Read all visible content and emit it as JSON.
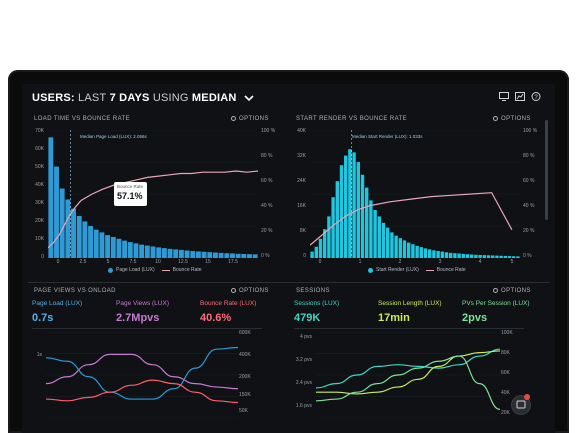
{
  "header": {
    "title_bold_1": "USERS:",
    "title_light_1": "LAST",
    "title_bold_2": "7 DAYS",
    "title_light_2": "USING",
    "title_bold_3": "MEDIAN",
    "icons": [
      "monitor-icon",
      "chart-line-icon",
      "help-icon"
    ]
  },
  "colors": {
    "blue_bars": "#2f9bd6",
    "cyan_bars": "#1fc6e0",
    "pink_line": "#e7a7b6",
    "bounce_red": "#ff5d6c",
    "purple": "#c47bd0",
    "teal": "#3fd6c6",
    "lime": "#c8ef5c",
    "green": "#7fe19a"
  },
  "panels": {
    "load_vs_bounce": {
      "title": "LOAD TIME VS BOUNCE RATE",
      "options": "OPTIONS",
      "median_label": "Median Page Load (LUX): 2.056s",
      "tooltip_title": "Bounce Rate",
      "tooltip_value": "57.1%",
      "y_left": [
        "70K",
        "60K",
        "50K",
        "40K",
        "30K",
        "20K",
        "10K",
        "0"
      ],
      "y_right": [
        "100 %",
        "80 %",
        "60 %",
        "40 %",
        "20 %",
        "0 %"
      ],
      "x": [
        "0",
        "2.5",
        "5",
        "7.5",
        "10",
        "12.5",
        "15",
        "17.5"
      ],
      "legend": [
        "Page Load (LUX)",
        "Bounce Rate"
      ]
    },
    "render_vs_bounce": {
      "title": "START RENDER VS BOUNCE RATE",
      "options": "OPTIONS",
      "median_label": "Median Start Render (LUX): 1.033s",
      "y_left": [
        "40K",
        "32K",
        "24K",
        "16K",
        "8K",
        "0"
      ],
      "y_right": [
        "100 %",
        "80 %",
        "60 %",
        "40 %",
        "20 %",
        "0 %"
      ],
      "x": [
        "0",
        "1",
        "2",
        "3",
        "4",
        "5"
      ],
      "legend": [
        "Start Render (LUX)",
        "Bounce Rate"
      ]
    },
    "pageviews": {
      "title": "PAGE VIEWS VS ONLOAD",
      "options": "OPTIONS",
      "metrics": [
        {
          "name": "Page Load (LUX)",
          "value": "0.7s"
        },
        {
          "name": "Page Views (LUX)",
          "value": "2.7Mpvs"
        },
        {
          "name": "Bounce Rate (LUX)",
          "value": "40.6%"
        }
      ],
      "y_left": [
        "1s",
        "",
        "",
        ""
      ],
      "y_right": [
        "600K",
        "400K",
        "200K",
        "150K",
        "50K"
      ]
    },
    "sessions": {
      "title": "SESSIONS",
      "options": "OPTIONS",
      "metrics": [
        {
          "name": "Sessions (LUX)",
          "value": "479K"
        },
        {
          "name": "Session Length (LUX)",
          "value": "17min"
        },
        {
          "name": "PVs Per Session (LUX)",
          "value": "2pvs"
        }
      ],
      "y_left": [
        "4 pvs",
        "3.2 pvs",
        "2.4 pvs",
        "1.6 pvs"
      ],
      "y_right": [
        "100K",
        "80K",
        "60K",
        "40K",
        "20K"
      ]
    }
  },
  "chart_data": [
    {
      "type": "bar",
      "title": "LOAD TIME VS BOUNCE RATE",
      "x": [
        0.25,
        0.75,
        1.25,
        1.75,
        2.25,
        2.75,
        3.25,
        3.75,
        4.25,
        4.75,
        5.25,
        5.75,
        6.25,
        6.75,
        7.25,
        7.75,
        8.25,
        8.75,
        9.25,
        9.75,
        10.25,
        10.75,
        11.25,
        11.75,
        12.25,
        12.75,
        13.25,
        13.75,
        14.25,
        14.75,
        15.25,
        15.75,
        16.25,
        16.75,
        17.25,
        17.75,
        18.25
      ],
      "values": [
        66000,
        50000,
        38000,
        32000,
        27000,
        23000,
        20000,
        17500,
        15500,
        14000,
        12500,
        11500,
        10500,
        9500,
        8700,
        8000,
        7300,
        6800,
        6300,
        5800,
        5400,
        5000,
        4700,
        4400,
        4100,
        3800,
        3600,
        3400,
        3200,
        3000,
        2800,
        2600,
        2500,
        2300,
        2200,
        2100,
        2000
      ],
      "bounce_x": [
        0,
        0.5,
        1,
        1.5,
        2,
        2.5,
        3,
        4,
        5,
        6,
        7,
        8,
        9,
        10,
        11,
        12,
        13,
        14,
        15,
        16,
        17,
        18,
        19
      ],
      "bounce_y": [
        8,
        12,
        18,
        26,
        34,
        40,
        45,
        50,
        54,
        57,
        59,
        61,
        63,
        64,
        65,
        66,
        66,
        67,
        67,
        67,
        68,
        67,
        68
      ],
      "ylim": [
        0,
        70000
      ],
      "ylim_right": [
        0,
        100
      ]
    },
    {
      "type": "bar",
      "title": "START RENDER VS BOUNCE RATE",
      "x": [
        0.05,
        0.15,
        0.25,
        0.35,
        0.45,
        0.55,
        0.65,
        0.75,
        0.85,
        0.95,
        1.05,
        1.15,
        1.25,
        1.35,
        1.45,
        1.55,
        1.65,
        1.75,
        1.85,
        1.95,
        2.05,
        2.15,
        2.25,
        2.35,
        2.45,
        2.55,
        2.65,
        2.75,
        2.85,
        2.95,
        3.05,
        3.15,
        3.25,
        3.35,
        3.45,
        3.55,
        3.65,
        3.75,
        3.85,
        3.95,
        4.05,
        4.15,
        4.25,
        4.35,
        4.45,
        4.55,
        4.65,
        4.75,
        4.85,
        4.95
      ],
      "values": [
        2000,
        3500,
        6000,
        9000,
        13000,
        19000,
        24000,
        29000,
        32000,
        34000,
        33000,
        30000,
        26000,
        22000,
        18000,
        15000,
        13000,
        11000,
        9500,
        8000,
        7000,
        6200,
        5500,
        4800,
        4300,
        3800,
        3400,
        3000,
        2700,
        2400,
        2200,
        2000,
        1800,
        1600,
        1500,
        1400,
        1300,
        1200,
        1100,
        1000,
        950,
        900,
        850,
        800,
        750,
        700,
        650,
        600,
        550,
        500
      ],
      "bounce_x": [
        0,
        0.3,
        0.6,
        0.9,
        1.2,
        1.5,
        2,
        2.5,
        3,
        3.5,
        4,
        4.5,
        5
      ],
      "bounce_y": [
        10,
        18,
        26,
        33,
        38,
        41,
        44,
        46,
        48,
        49,
        50,
        51,
        22
      ],
      "ylim": [
        0,
        40000
      ],
      "ylim_right": [
        0,
        100
      ]
    },
    {
      "type": "line",
      "title": "PAGE VIEWS VS ONLOAD",
      "series": [
        {
          "values": [
            0.4,
            0.48,
            0.62,
            0.74,
            0.74,
            0.62,
            0.48,
            0.4,
            0.36,
            0.34
          ]
        },
        {
          "values": [
            0.7,
            0.66,
            0.48,
            0.3,
            0.22,
            0.22,
            0.34,
            0.58,
            0.8,
            0.82
          ]
        },
        {
          "values": [
            0.22,
            0.2,
            0.24,
            0.3,
            0.38,
            0.44,
            0.4,
            0.3,
            0.2,
            0.18
          ]
        }
      ]
    },
    {
      "type": "line",
      "title": "SESSIONS",
      "series": [
        {
          "values": [
            0.35,
            0.4,
            0.5,
            0.6,
            0.62,
            0.6,
            0.58,
            0.62,
            0.72,
            0.8
          ]
        },
        {
          "values": [
            0.3,
            0.3,
            0.28,
            0.3,
            0.36,
            0.45,
            0.6,
            0.72,
            0.76,
            0.78
          ]
        },
        {
          "values": [
            0.2,
            0.22,
            0.3,
            0.4,
            0.5,
            0.58,
            0.66,
            0.72,
            0.4,
            0.1
          ]
        }
      ]
    }
  ]
}
